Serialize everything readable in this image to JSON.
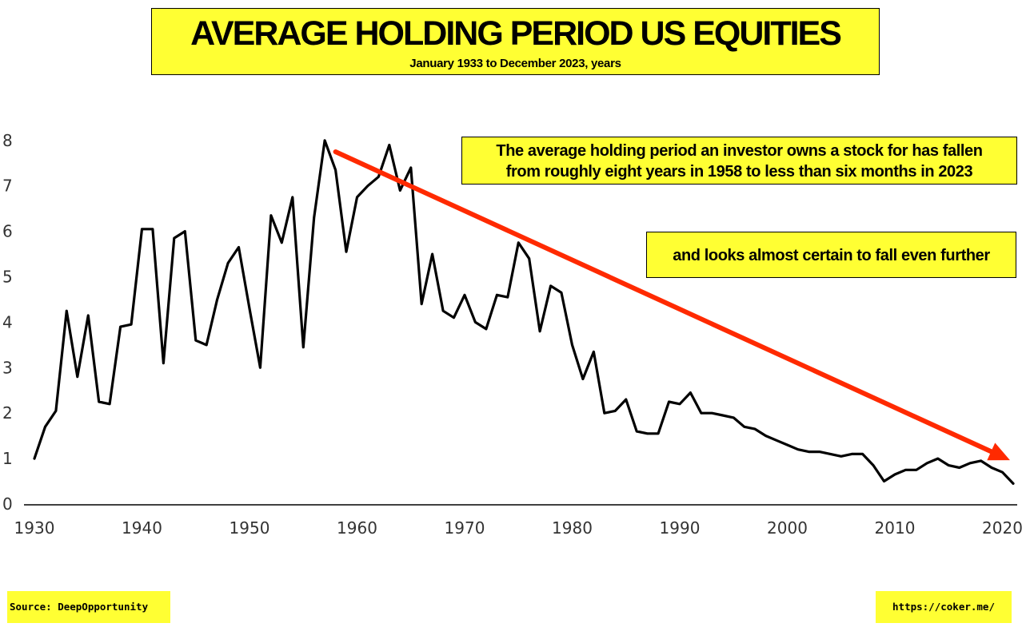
{
  "colors": {
    "highlight": "#ffff33",
    "line": "#000000",
    "arrow": "#ff2a00",
    "axis": "#000000"
  },
  "title": "AVERAGE HOLDING PERIOD US EQUITIES",
  "subtitle": "January 1933 to December 2023, years",
  "annotations": {
    "note1_line1": "The average holding period an investor owns a stock for has fallen",
    "note1_line2": "from roughly eight years in 1958 to less than six months in 2023",
    "note2": "and looks almost certain to fall even further"
  },
  "footer": {
    "source": "Source: DeepOpportunity",
    "url": "https://coker.me/"
  },
  "chart_data": {
    "type": "line",
    "xlim": [
      1930,
      2022
    ],
    "ylim": [
      0,
      8
    ],
    "x_ticks": [
      1930,
      1940,
      1950,
      1960,
      1970,
      1980,
      1990,
      2000,
      2010,
      2020
    ],
    "y_ticks": [
      0,
      1,
      2,
      3,
      4,
      5,
      6,
      7,
      8
    ],
    "grid": false,
    "series": [
      {
        "x": [
          1930,
          1931,
          1932,
          1933,
          1934,
          1935,
          1936,
          1937,
          1938,
          1939,
          1940,
          1941,
          1942,
          1943,
          1944,
          1945,
          1946,
          1947,
          1948,
          1949,
          1950,
          1951,
          1952,
          1953,
          1954,
          1955,
          1956,
          1957,
          1958,
          1959,
          1960,
          1961,
          1962,
          1963,
          1964,
          1965,
          1966,
          1967,
          1968,
          1969,
          1970,
          1971,
          1972,
          1973,
          1974,
          1975,
          1976,
          1977,
          1978,
          1979,
          1980,
          1981,
          1982,
          1983,
          1984,
          1985,
          1986,
          1987,
          1988,
          1989,
          1990,
          1991,
          1992,
          1993,
          1994,
          1995,
          1996,
          1997,
          1998,
          1999,
          2000,
          2001,
          2002,
          2003,
          2004,
          2005,
          2006,
          2007,
          2008,
          2009,
          2010,
          2011,
          2012,
          2013,
          2014,
          2015,
          2016,
          2017,
          2018,
          2019,
          2020,
          2021
        ],
        "values": [
          1.0,
          1.7,
          2.05,
          4.25,
          2.8,
          4.15,
          2.25,
          2.2,
          3.9,
          3.95,
          6.05,
          6.05,
          3.1,
          5.85,
          6.0,
          3.6,
          3.5,
          4.5,
          5.3,
          5.65,
          4.3,
          3.0,
          6.35,
          5.75,
          6.75,
          3.45,
          6.3,
          8.0,
          7.35,
          5.55,
          6.75,
          7.0,
          7.2,
          7.9,
          6.9,
          7.4,
          4.4,
          5.5,
          4.25,
          4.1,
          4.6,
          4.0,
          3.85,
          4.6,
          4.55,
          5.75,
          5.4,
          3.8,
          4.8,
          4.65,
          3.5,
          2.75,
          3.35,
          2.0,
          2.05,
          2.3,
          1.6,
          1.55,
          1.55,
          2.25,
          2.2,
          2.45,
          2.0,
          2.0,
          1.95,
          1.9,
          1.7,
          1.65,
          1.5,
          1.4,
          1.3,
          1.2,
          1.15,
          1.15,
          1.1,
          1.05,
          1.1,
          1.1,
          0.85,
          0.5,
          0.65,
          0.75,
          0.75,
          0.9,
          1.0,
          0.85,
          0.8,
          0.9,
          0.95,
          0.8,
          0.7,
          0.45
        ]
      }
    ],
    "trend_arrow": {
      "from": [
        1958,
        7.75
      ],
      "to": [
        2021,
        1.0
      ]
    }
  }
}
